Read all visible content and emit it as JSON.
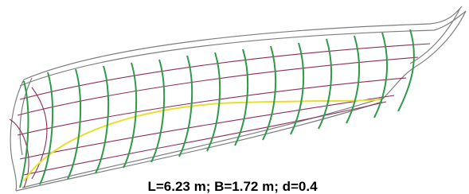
{
  "caption": "L=6.23 m; B=1.72 m; d=0.4"
}
